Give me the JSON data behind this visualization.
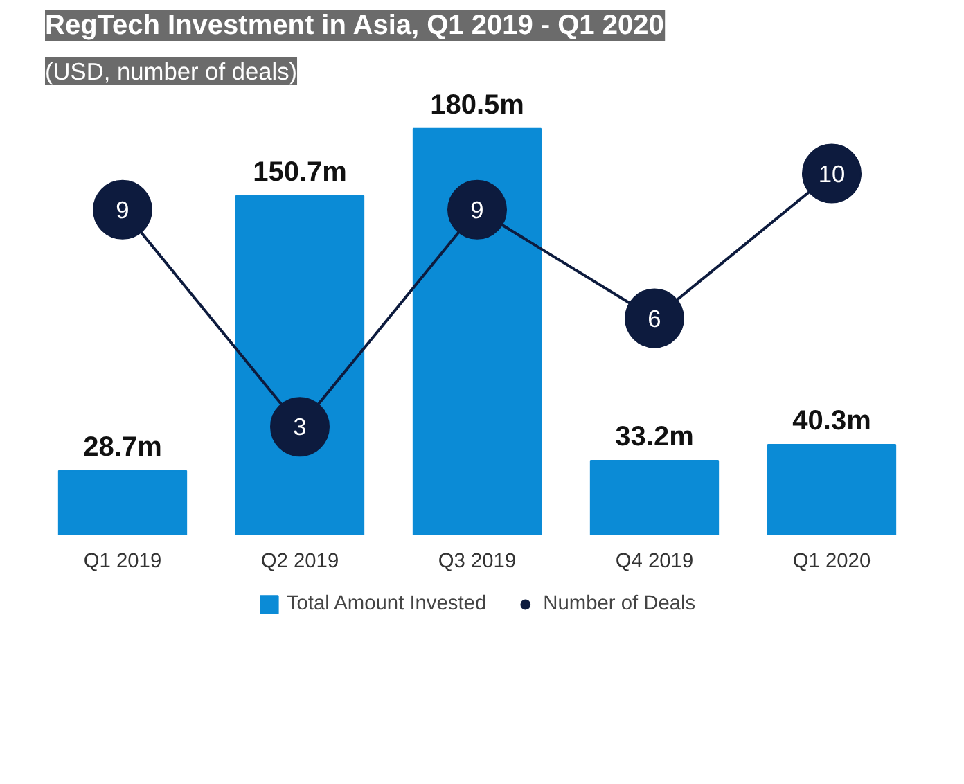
{
  "chart_data": {
    "type": "bar",
    "title": "RegTech Investment in Asia, Q1 2019 - Q1 2020",
    "subtitle": "(USD, number of deals)",
    "categories": [
      "Q1 2019",
      "Q2 2019",
      "Q3 2019",
      "Q4 2019",
      "Q1 2020"
    ],
    "series": [
      {
        "name": "Total Amount Invested",
        "color": "#0b8bd6",
        "values": [
          28.7,
          150.7,
          180.5,
          33.2,
          40.3
        ],
        "value_labels": [
          "28.7m",
          "150.7m",
          "180.5m",
          "33.2m",
          "40.3m"
        ]
      },
      {
        "name": "Number of Deals",
        "type": "line",
        "axis": "y2",
        "color": "#0d1b3e",
        "values": [
          9,
          3,
          9,
          6,
          10
        ],
        "value_labels": [
          "9",
          "3",
          "9",
          "6",
          "10"
        ]
      }
    ],
    "tick_labels": "x",
    "grid": false,
    "legend": "bottom",
    "marker": "circle",
    "line_style": "solid"
  }
}
